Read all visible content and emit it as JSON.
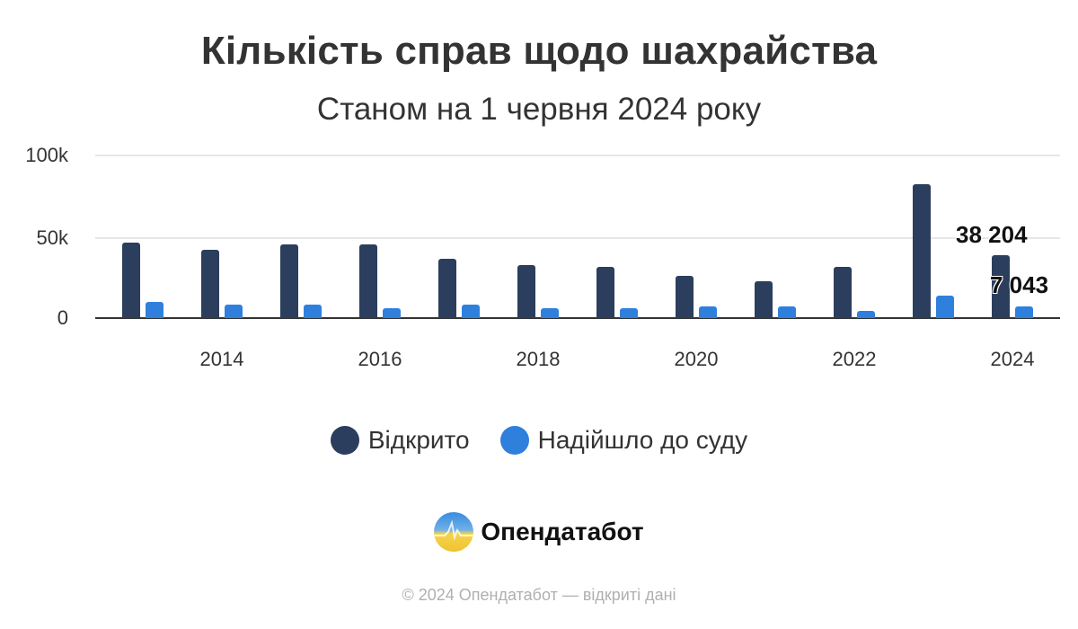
{
  "header": {
    "title": "Кількість справ щодо шахрайства",
    "subtitle": "Станом на 1 червня 2024 року"
  },
  "colors": {
    "opened": "#2c3e5d",
    "to_court": "#2f80dd"
  },
  "axes": {
    "y_ticks": [
      "0",
      "50k",
      "100k"
    ],
    "x_ticks": [
      "2014",
      "2016",
      "2018",
      "2020",
      "2022",
      "2024"
    ]
  },
  "labels": {
    "last_opened": "38 204",
    "last_to_court": "7 043"
  },
  "legend": {
    "items": [
      {
        "label": "Відкрито",
        "color": "#2c3e5d"
      },
      {
        "label": "Надійшло до суду",
        "color": "#2f80dd"
      }
    ]
  },
  "brand": {
    "name": "Опендатабот"
  },
  "footer": {
    "text": "© 2024 Опендатабот — відкриті дані"
  },
  "chart_data": {
    "type": "bar",
    "title": "Кількість справ щодо шахрайства",
    "subtitle": "Станом на 1 червня 2024 року",
    "xlabel": "",
    "ylabel": "",
    "ylim": [
      0,
      100000
    ],
    "grid": true,
    "legend_position": "bottom",
    "categories": [
      "2013",
      "2014",
      "2015",
      "2016",
      "2017",
      "2018",
      "2019",
      "2020",
      "2021",
      "2022",
      "2023",
      "2024"
    ],
    "x_tick_labels": [
      "2014",
      "2016",
      "2018",
      "2020",
      "2022",
      "2024"
    ],
    "y_tick_labels": [
      "0",
      "50k",
      "100k"
    ],
    "series": [
      {
        "name": "Відкрито",
        "color": "#2c3e5d",
        "values": [
          46000,
          41500,
          45000,
          45000,
          36000,
          32500,
          31500,
          26000,
          22500,
          31500,
          82000,
          38204
        ]
      },
      {
        "name": "Надійшло до суду",
        "color": "#2f80dd",
        "values": [
          10000,
          8000,
          8000,
          6000,
          8000,
          6000,
          6000,
          7000,
          7000,
          4500,
          13500,
          7043
        ]
      }
    ],
    "annotations": [
      "38 204",
      "7 043"
    ]
  }
}
